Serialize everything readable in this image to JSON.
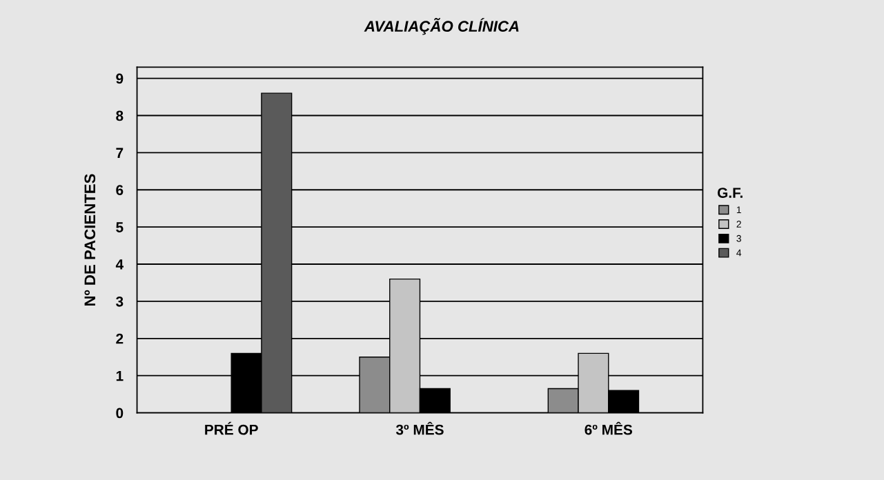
{
  "chart_data": {
    "type": "bar",
    "title": "AVALIAÇÃO CLÍNICA",
    "ylabel": "Nº DE PACIENTES",
    "legend_title": "G.F.",
    "categories": [
      "PRÉ OP",
      "3º MÊS",
      "6º MÊS"
    ],
    "series": [
      {
        "name": "1",
        "color": "#8c8c8c",
        "values": [
          null,
          1.5,
          0.65
        ]
      },
      {
        "name": "2",
        "color": "#c4c4c4",
        "values": [
          null,
          3.6,
          1.6
        ]
      },
      {
        "name": "3",
        "color": "#000000",
        "values": [
          1.6,
          0.65,
          0.6
        ]
      },
      {
        "name": "4",
        "color": "#5a5a5a",
        "values": [
          8.6,
          null,
          null
        ]
      }
    ],
    "ylim": [
      0,
      9.3
    ],
    "yticks": [
      0,
      1,
      2,
      3,
      4,
      5,
      6,
      7,
      8,
      9
    ],
    "grid": "y",
    "legend": "right"
  }
}
